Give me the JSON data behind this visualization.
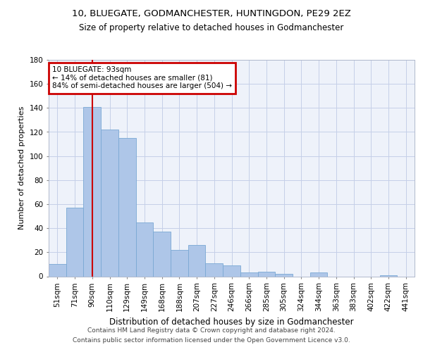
{
  "title": "10, BLUEGATE, GODMANCHESTER, HUNTINGDON, PE29 2EZ",
  "subtitle": "Size of property relative to detached houses in Godmanchester",
  "xlabel": "Distribution of detached houses by size in Godmanchester",
  "ylabel": "Number of detached properties",
  "categories": [
    "51sqm",
    "71sqm",
    "90sqm",
    "110sqm",
    "129sqm",
    "149sqm",
    "168sqm",
    "188sqm",
    "207sqm",
    "227sqm",
    "246sqm",
    "266sqm",
    "285sqm",
    "305sqm",
    "324sqm",
    "344sqm",
    "363sqm",
    "383sqm",
    "402sqm",
    "422sqm",
    "441sqm"
  ],
  "values": [
    10,
    57,
    141,
    122,
    115,
    45,
    37,
    22,
    26,
    11,
    9,
    3,
    4,
    2,
    0,
    3,
    0,
    0,
    0,
    1,
    0
  ],
  "bar_color": "#aec6e8",
  "bar_edge_color": "#7aa8d4",
  "highlight_index": 2,
  "highlight_line_color": "#cc0000",
  "annotation_text": "10 BLUEGATE: 93sqm\n← 14% of detached houses are smaller (81)\n84% of semi-detached houses are larger (504) →",
  "annotation_box_color": "#ffffff",
  "annotation_box_edge_color": "#cc0000",
  "ylim": [
    0,
    180
  ],
  "yticks": [
    0,
    20,
    40,
    60,
    80,
    100,
    120,
    140,
    160,
    180
  ],
  "footer_text": "Contains HM Land Registry data © Crown copyright and database right 2024.\nContains public sector information licensed under the Open Government Licence v3.0.",
  "bg_color": "#eef2fa",
  "grid_color": "#c5cfe8",
  "title_fontsize": 9.5,
  "subtitle_fontsize": 8.5,
  "ylabel_fontsize": 8,
  "xlabel_fontsize": 8.5,
  "tick_fontsize": 7.5,
  "annotation_fontsize": 7.5,
  "footer_fontsize": 6.5
}
